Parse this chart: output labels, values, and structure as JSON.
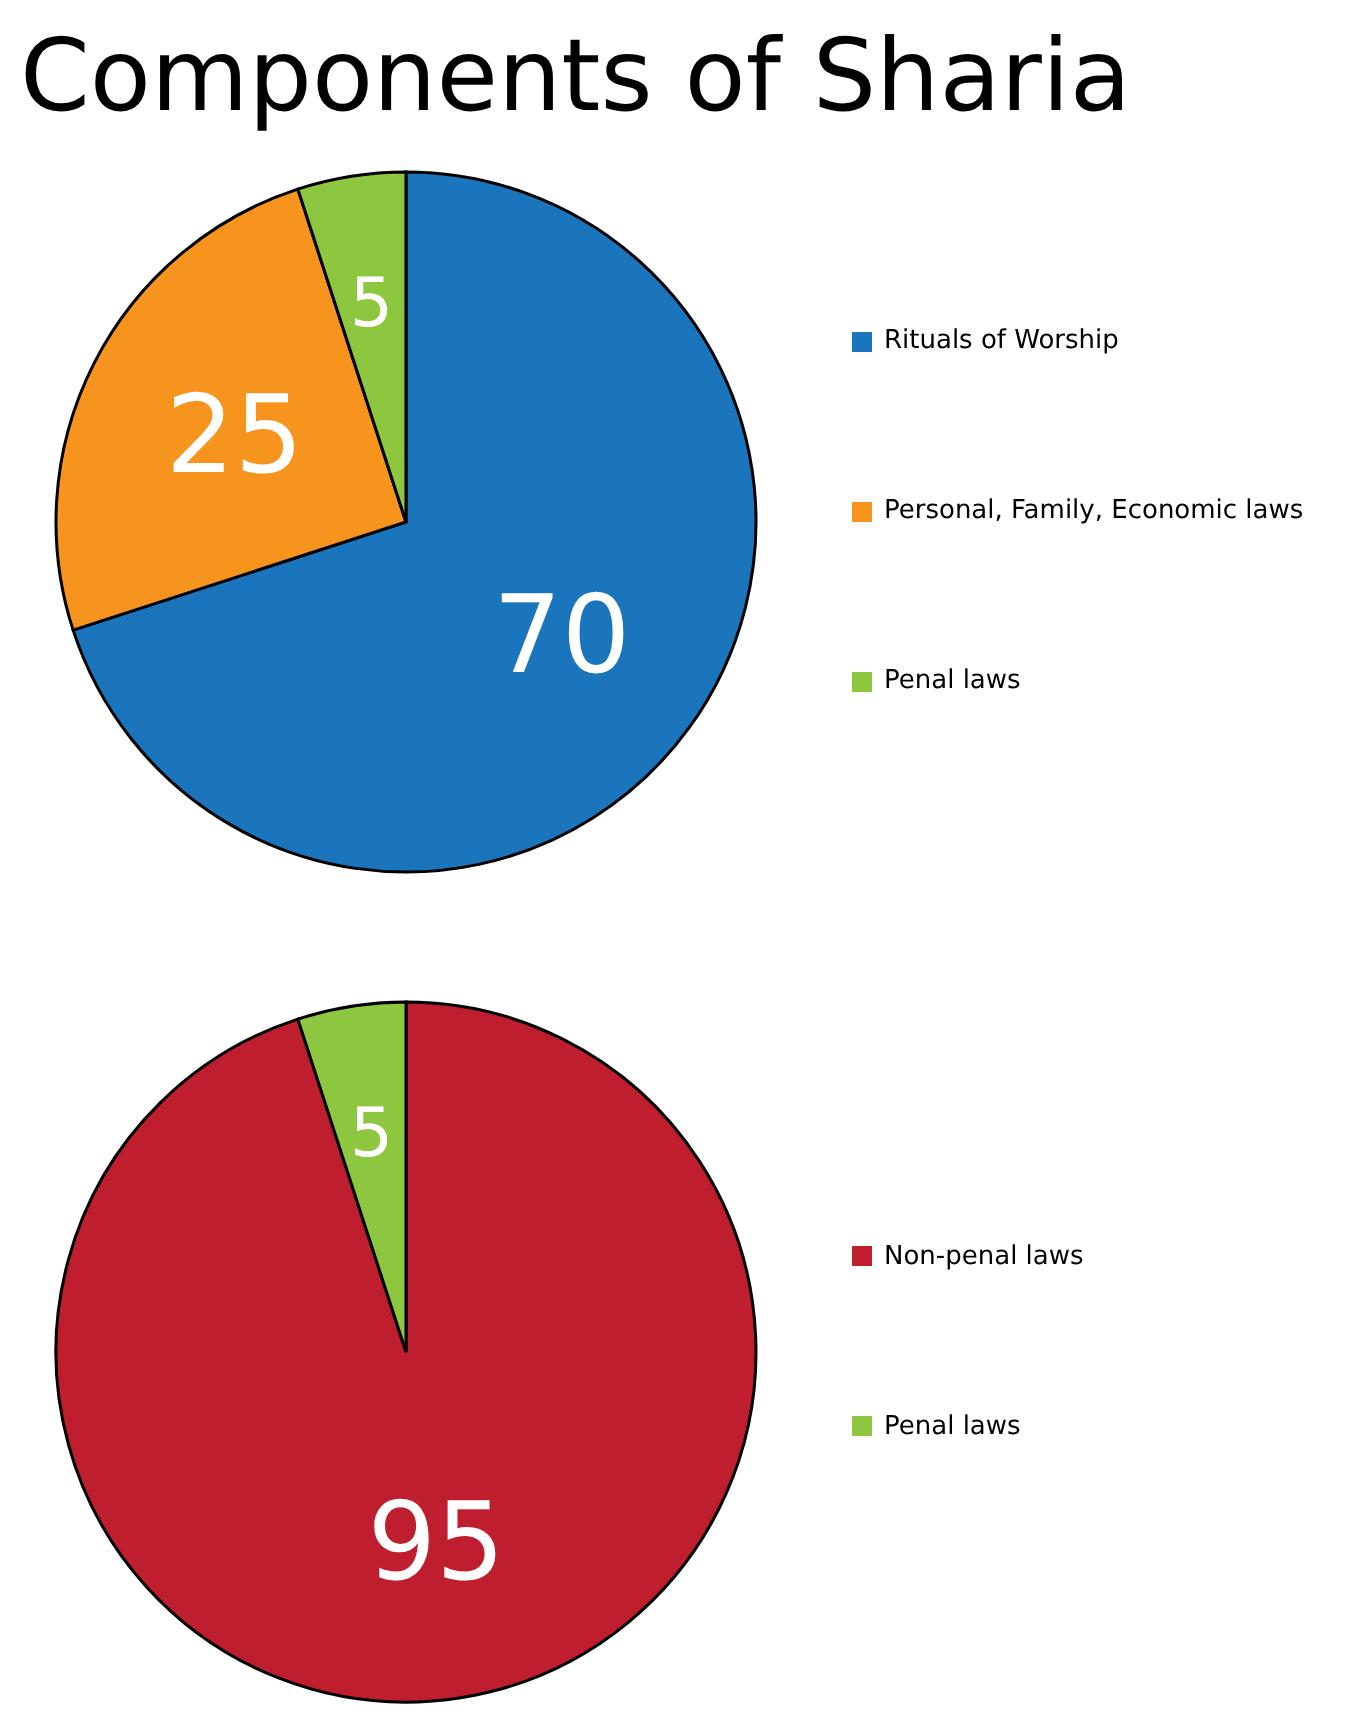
{
  "chart_data": [
    {
      "type": "pie",
      "title": "Components of Sharia",
      "categories": [
        "Rituals of Worship",
        "Personal, Family, Economic laws",
        "Penal laws"
      ],
      "values": [
        70,
        25,
        5
      ],
      "colors": [
        "#1a75bc",
        "#f7941d",
        "#8dc63f"
      ],
      "data_labels": true,
      "legend": "right"
    },
    {
      "type": "pie",
      "categories": [
        "Non-penal laws",
        "Penal laws"
      ],
      "values": [
        95,
        5
      ],
      "colors": [
        "#be1e2d",
        "#8dc63f"
      ],
      "data_labels": true,
      "legend": "right"
    }
  ]
}
